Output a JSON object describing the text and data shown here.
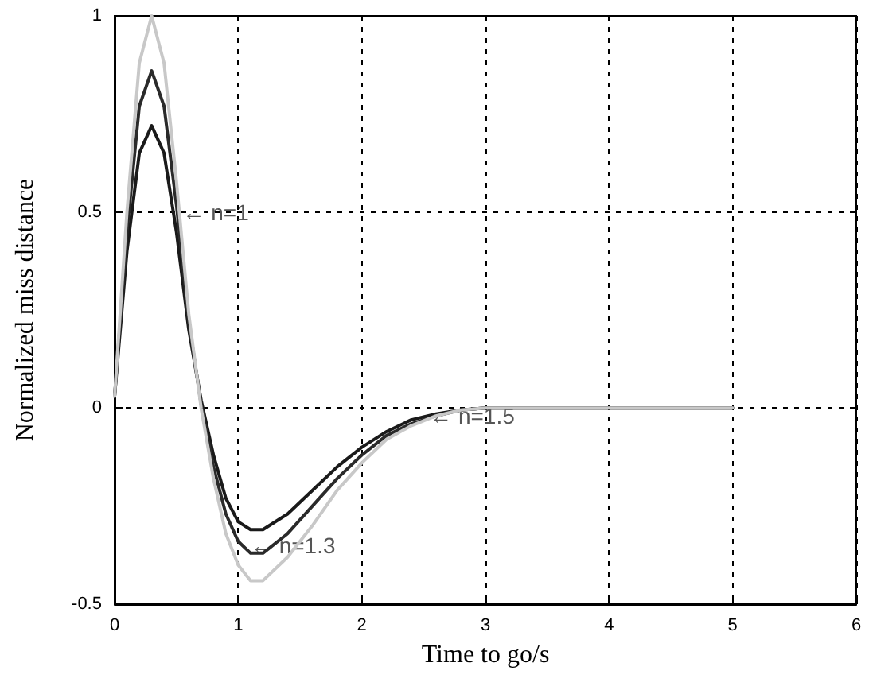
{
  "chart_data": {
    "type": "line",
    "xlabel": "Time to go/s",
    "ylabel": "Normalized miss distance",
    "x": [
      0,
      0.1,
      0.2,
      0.3,
      0.4,
      0.5,
      0.6,
      0.7,
      0.8,
      0.9,
      1.0,
      1.1,
      1.2,
      1.4,
      1.6,
      1.8,
      2.0,
      2.2,
      2.4,
      2.6,
      2.8,
      3.0,
      4,
      5
    ],
    "series": [
      {
        "color": "#1a1a1a",
        "values": [
          0.03,
          0.4,
          0.65,
          0.72,
          0.65,
          0.45,
          0.2,
          0.02,
          -0.12,
          -0.23,
          -0.29,
          -0.31,
          -0.31,
          -0.27,
          -0.21,
          -0.15,
          -0.1,
          -0.06,
          -0.03,
          -0.015,
          -0.005,
          0,
          0,
          0
        ]
      },
      {
        "color": "#2a2a2a",
        "values": [
          0.03,
          0.45,
          0.77,
          0.86,
          0.77,
          0.52,
          0.22,
          0.01,
          -0.15,
          -0.27,
          -0.34,
          -0.37,
          -0.37,
          -0.32,
          -0.25,
          -0.18,
          -0.12,
          -0.07,
          -0.04,
          -0.02,
          -0.005,
          0,
          0,
          0
        ]
      },
      {
        "color": "#c8c8c8",
        "values": [
          0.03,
          0.5,
          0.88,
          1.0,
          0.88,
          0.58,
          0.24,
          0.0,
          -0.18,
          -0.32,
          -0.4,
          -0.44,
          -0.44,
          -0.38,
          -0.3,
          -0.21,
          -0.14,
          -0.08,
          -0.045,
          -0.02,
          -0.005,
          0,
          0,
          0
        ]
      }
    ],
    "annotations": [
      {
        "text": "← n=1",
        "x": 0.55,
        "y": 0.5
      },
      {
        "text": "← n=1.3",
        "x": 1.1,
        "y": -0.35
      },
      {
        "text": "← n=1.5",
        "x": 2.55,
        "y": -0.02
      }
    ],
    "xlim": [
      0,
      6
    ],
    "xticks": [
      0,
      1,
      2,
      3,
      4,
      5,
      6
    ],
    "ylim": [
      -0.5,
      1
    ],
    "yticks": [
      -0.5,
      0,
      0.5,
      1
    ],
    "grid": true,
    "line_style": "solid",
    "marker": "none"
  }
}
